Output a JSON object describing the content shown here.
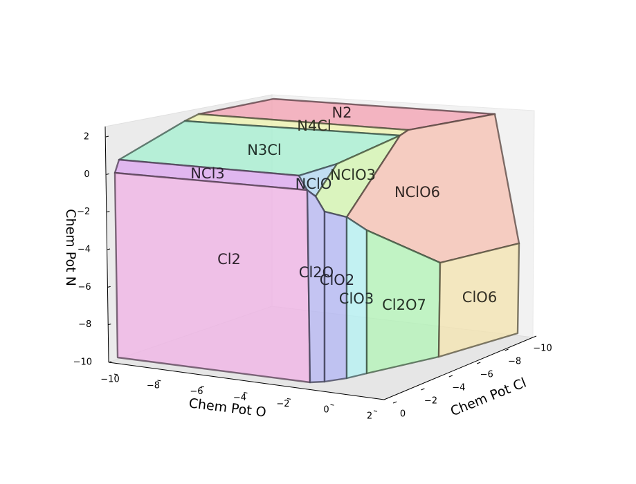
{
  "chart_data": {
    "type": "3d-polyhedral-phase-diagram",
    "xlabel": "Chem Pot O",
    "ylabel": "Chem Pot Cl",
    "zlabel": "Chem Pot N",
    "x_ticks": [
      "−10",
      "−8",
      "−6",
      "−4",
      "−2",
      "0",
      "2"
    ],
    "y_ticks": [
      "0",
      "−2",
      "−4",
      "−6",
      "−8",
      "−10"
    ],
    "z_ticks": [
      "2",
      "0",
      "−2",
      "−4",
      "−6",
      "−8",
      "−10"
    ],
    "xlim": [
      -10,
      2
    ],
    "ylim": [
      -10,
      0
    ],
    "zlim": [
      -10,
      2
    ],
    "grid": false,
    "regions": [
      {
        "name": "N2",
        "color": "#f4a3b4"
      },
      {
        "name": "N4Cl",
        "color": "#eef4b0"
      },
      {
        "name": "N3Cl",
        "color": "#a6efd1"
      },
      {
        "name": "NCl3",
        "color": "#dca8ef"
      },
      {
        "name": "NClO",
        "color": "#b3d9f2"
      },
      {
        "name": "NClO3",
        "color": "#d3f5b0"
      },
      {
        "name": "NClO6",
        "color": "#f6c1b3"
      },
      {
        "name": "Cl2",
        "color": "#f0b4e6"
      },
      {
        "name": "Cl2O",
        "color": "#b7b7f2"
      },
      {
        "name": "ClO2",
        "color": "#b4b7f4"
      },
      {
        "name": "ClO3",
        "color": "#b5f1f2"
      },
      {
        "name": "Cl2O7",
        "color": "#b3f3b7"
      },
      {
        "name": "ClO6",
        "color": "#f4e4b1"
      }
    ]
  }
}
